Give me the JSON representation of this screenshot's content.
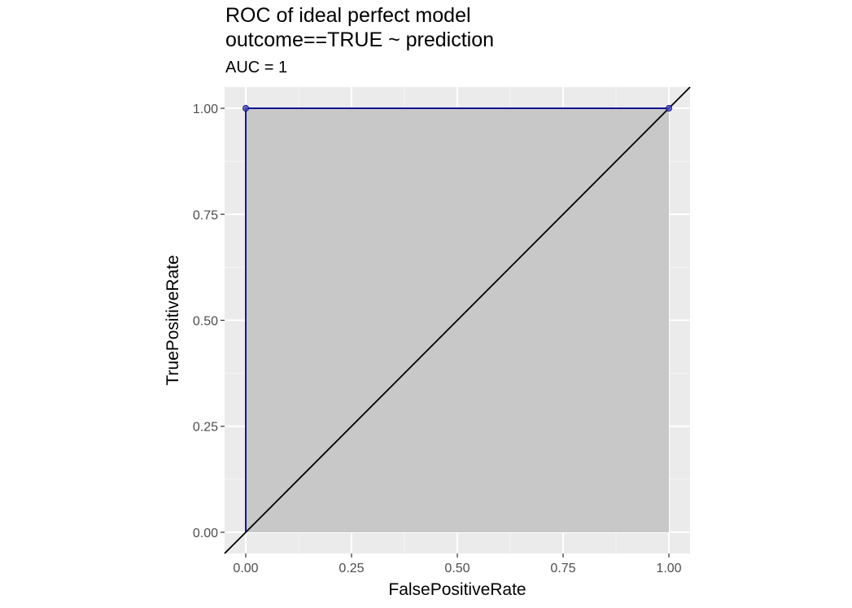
{
  "chart_data": {
    "type": "line",
    "title_lines": [
      "ROC of ideal perfect model",
      "outcome==TRUE ~ prediction"
    ],
    "subtitle": "AUC = 1",
    "xlabel": "FalsePositiveRate",
    "ylabel": "TruePositiveRate",
    "xlim": [
      -0.05,
      1.05
    ],
    "ylim": [
      -0.05,
      1.05
    ],
    "x_ticks": [
      0,
      0.25,
      0.5,
      0.75,
      1
    ],
    "x_tick_labels": [
      "0.00",
      "0.25",
      "0.50",
      "0.75",
      "1.00"
    ],
    "y_ticks": [
      0,
      0.25,
      0.5,
      0.75,
      1
    ],
    "y_tick_labels": [
      "0.00",
      "0.25",
      "0.50",
      "0.75",
      "1.00"
    ],
    "grid": true,
    "series": [
      {
        "role": "roc-curve",
        "x": [
          0,
          0,
          1
        ],
        "y": [
          0,
          1,
          1
        ],
        "color": "#00008b",
        "fill": "#c8c8c8"
      },
      {
        "role": "diagonal",
        "x": [
          -0.05,
          1.05
        ],
        "y": [
          -0.05,
          1.05
        ],
        "color": "#000000"
      }
    ],
    "points": [
      {
        "x": 0,
        "y": 1
      },
      {
        "x": 1,
        "y": 1
      }
    ],
    "colors": {
      "panel_background": "#ebebeb",
      "grid_major": "#ffffff",
      "grid_minor": "#f5f5f5",
      "area_fill": "#c8c8c8",
      "curve": "#00008b",
      "point": "#4a4ab5"
    }
  }
}
